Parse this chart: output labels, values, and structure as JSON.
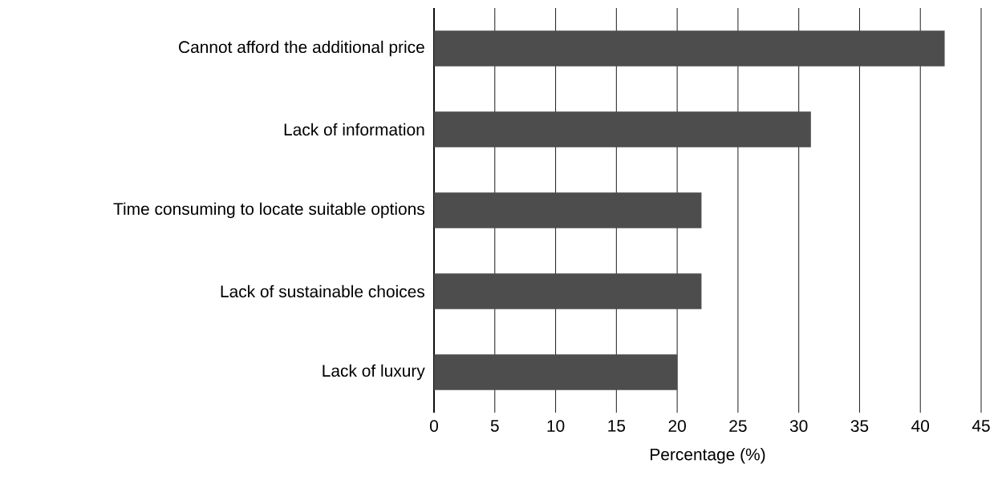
{
  "chart_data": {
    "type": "bar",
    "orientation": "horizontal",
    "xlabel": "Percentage (%)",
    "categories": [
      "Cannot afford the additional price",
      "Lack of information",
      "Time consuming to locate suitable options",
      "Lack of sustainable choices",
      "Lack of luxury"
    ],
    "values": [
      42,
      31,
      22,
      22,
      20
    ],
    "color": "#4d4d4d",
    "xlim": [
      0,
      45
    ],
    "xticks": [
      0,
      5,
      10,
      15,
      20,
      25,
      30,
      35,
      40,
      45
    ],
    "grid": "x"
  }
}
